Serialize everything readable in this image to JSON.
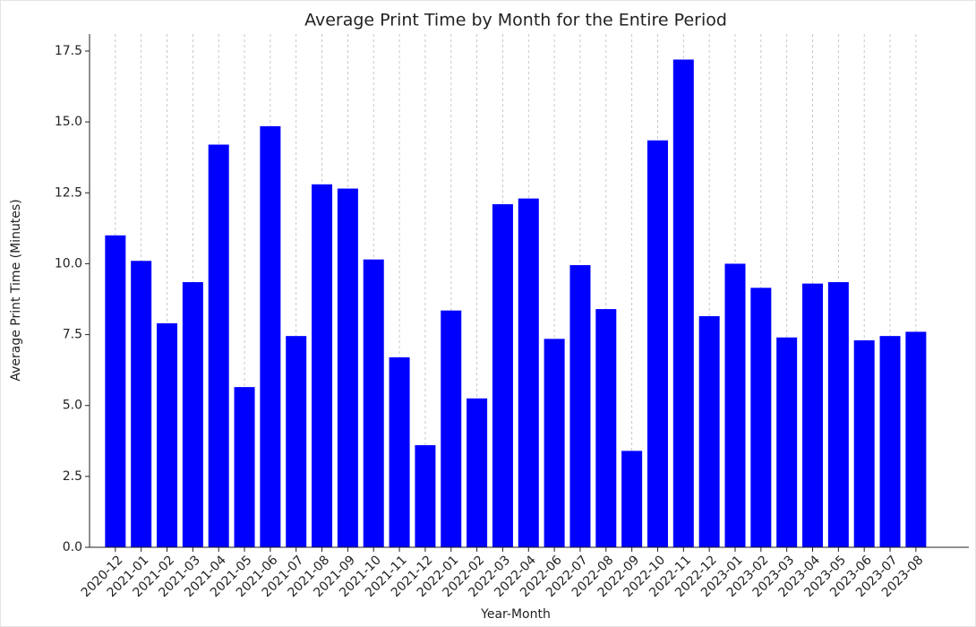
{
  "chart_data": {
    "type": "bar",
    "title": "Average Print Time by Month for the Entire Period",
    "x_label": "Year-Month",
    "y_label": "Average Print Time (Minutes)",
    "categories": [
      "2020-12",
      "2021-01",
      "2021-02",
      "2021-03",
      "2021-04",
      "2021-05",
      "2021-06",
      "2021-07",
      "2021-08",
      "2021-09",
      "2021-10",
      "2021-11",
      "2021-12",
      "2022-01",
      "2022-02",
      "2022-03",
      "2022-04",
      "2022-06",
      "2022-07",
      "2022-08",
      "2022-09",
      "2022-10",
      "2022-11",
      "2022-12",
      "2023-01",
      "2023-02",
      "2023-03",
      "2023-04",
      "2023-05",
      "2023-06",
      "2023-07",
      "2023-08"
    ],
    "values": [
      11.0,
      10.1,
      7.9,
      9.35,
      14.2,
      5.65,
      14.85,
      7.45,
      12.8,
      12.65,
      10.15,
      6.7,
      3.6,
      8.35,
      5.25,
      12.1,
      12.3,
      7.35,
      9.95,
      8.4,
      3.4,
      14.35,
      17.2,
      8.15,
      10.0,
      9.15,
      7.4,
      9.3,
      9.35,
      7.3,
      7.45,
      7.6
    ],
    "color": "#0000ff",
    "ylim": [
      0,
      18.1
    ],
    "yticks": [
      {
        "value": 0,
        "label": "0.0"
      },
      2.5,
      {
        "value": 5,
        "label": "5.0"
      },
      7.5,
      {
        "value": 10,
        "label": "10.0"
      },
      12.5,
      {
        "value": 15,
        "label": "15.0"
      },
      17.5
    ],
    "grid": "x"
  }
}
